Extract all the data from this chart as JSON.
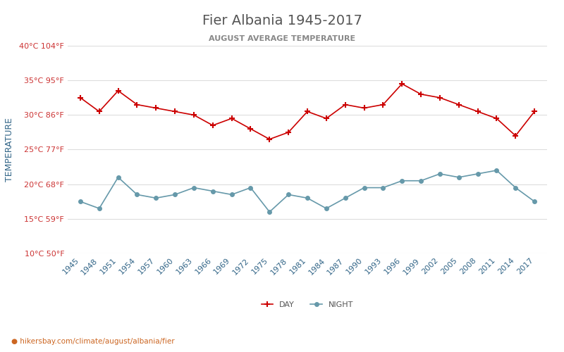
{
  "title": "Fier Albania 1945-2017",
  "subtitle": "AUGUST AVERAGE TEMPERATURE",
  "ylabel": "TEMPERATURE",
  "watermark": "hikersbay.com/climate/august/albania/fier",
  "years": [
    1945,
    1948,
    1951,
    1954,
    1957,
    1960,
    1963,
    1966,
    1969,
    1972,
    1975,
    1978,
    1981,
    1984,
    1987,
    1990,
    1993,
    1996,
    1999,
    2002,
    2005,
    2008,
    2011,
    2014,
    2017
  ],
  "day_temps": [
    32.5,
    30.5,
    33.5,
    31.5,
    31.0,
    30.5,
    30.0,
    28.5,
    29.5,
    28.0,
    26.5,
    27.5,
    30.5,
    29.5,
    31.5,
    31.0,
    31.5,
    34.5,
    33.0,
    32.5,
    31.5,
    30.5,
    29.5,
    27.0,
    30.5
  ],
  "night_temps": [
    17.5,
    16.5,
    21.0,
    18.5,
    18.0,
    18.5,
    19.5,
    19.0,
    18.5,
    19.5,
    16.0,
    18.5,
    18.0,
    16.5,
    18.0,
    19.5,
    19.5,
    20.5,
    20.5,
    21.5,
    21.0,
    21.5,
    22.0,
    19.5,
    17.5
  ],
  "ylim_min": 10,
  "ylim_max": 40,
  "yticks": [
    10,
    15,
    20,
    25,
    30,
    35,
    40
  ],
  "ytick_labels_c": [
    "10°C",
    "15°C",
    "20°C",
    "25°C",
    "30°C",
    "35°C",
    "40°C"
  ],
  "ytick_labels_f": [
    "50°F",
    "59°F",
    "68°F",
    "77°F",
    "86°F",
    "95°F",
    "104°F"
  ],
  "day_color": "#cc0000",
  "night_color": "#6699aa",
  "title_color": "#555555",
  "subtitle_color": "#888888",
  "tick_label_color": "#cc3333",
  "ylabel_color": "#336688",
  "grid_color": "#dddddd",
  "bg_color": "#ffffff",
  "watermark_color": "#cc6622"
}
